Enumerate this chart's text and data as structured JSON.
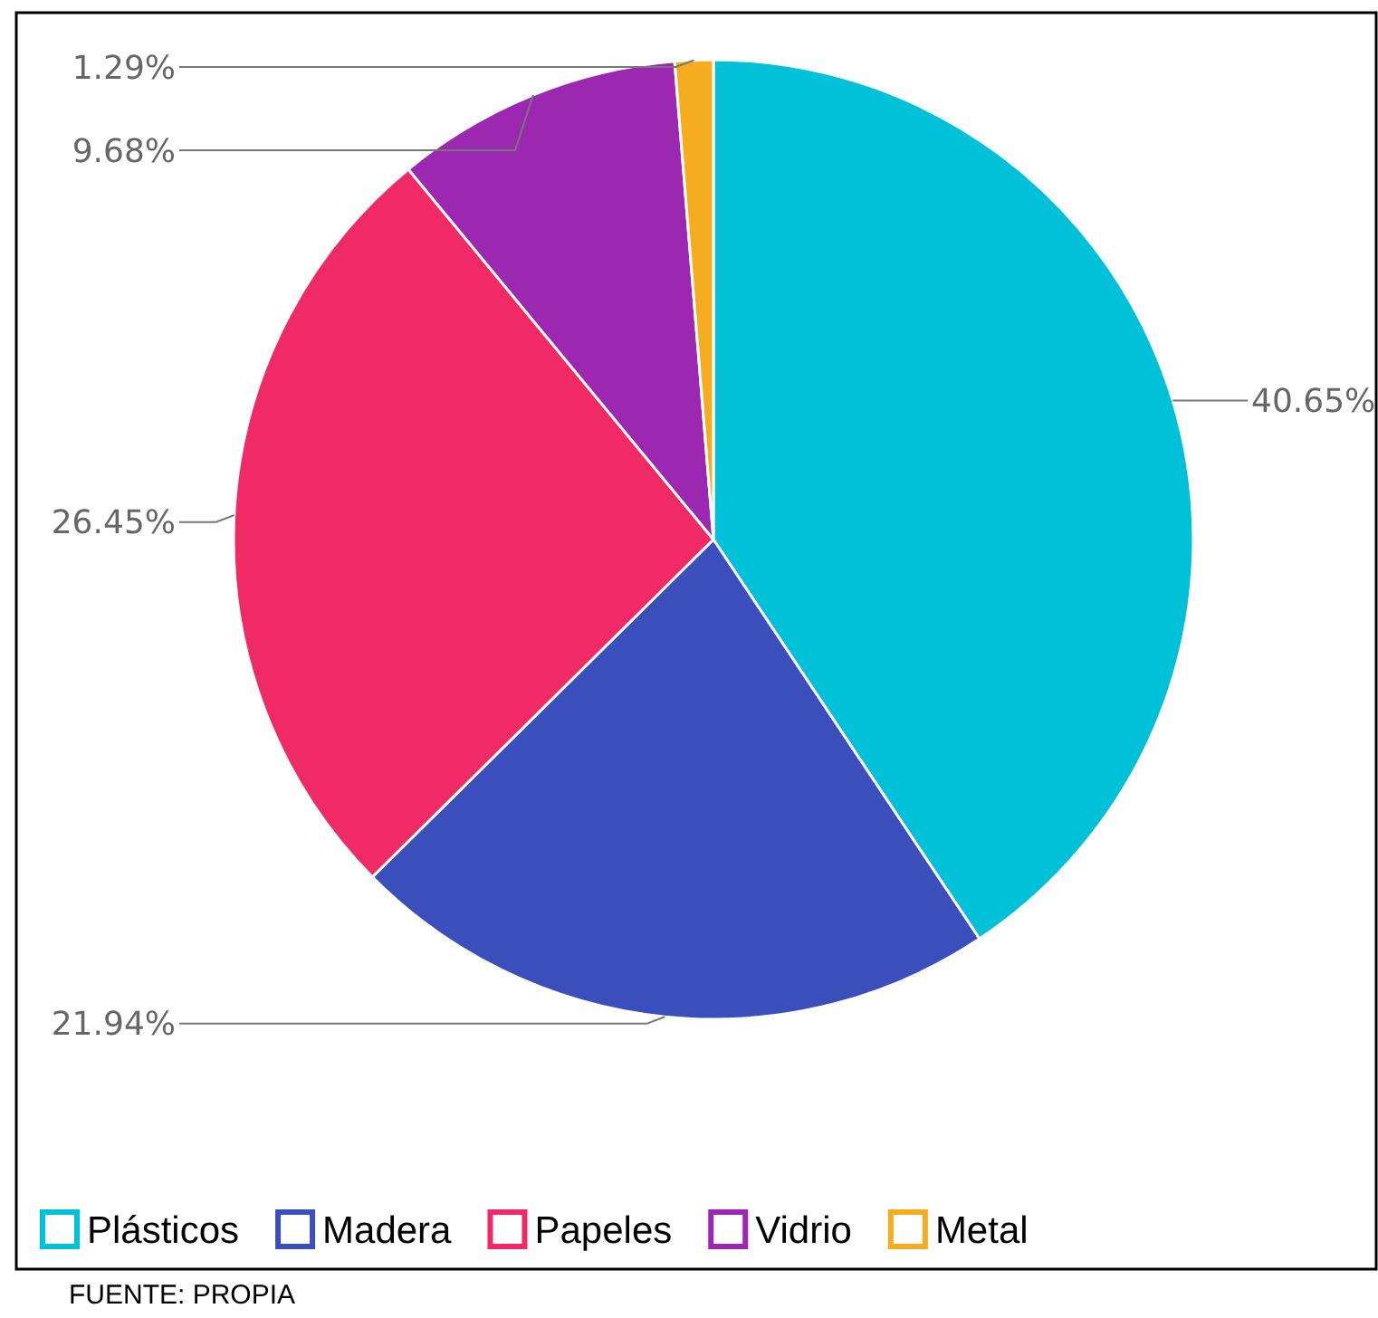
{
  "chart_data": {
    "type": "pie",
    "categories": [
      "Plásticos",
      "Madera",
      "Papeles",
      "Vidrio",
      "Metal"
    ],
    "values": [
      40.65,
      21.94,
      26.45,
      9.68,
      1.29
    ],
    "colors": [
      "#00c1d8",
      "#3a4fbb",
      "#f02a66",
      "#9c27b0",
      "#f5ad1f"
    ],
    "value_labels": [
      "40.65%",
      "21.94%",
      "26.45%",
      "9.68%",
      "1.29%"
    ],
    "legend": "bottom",
    "annotations": [
      "FUENTE: PROPIA"
    ]
  }
}
